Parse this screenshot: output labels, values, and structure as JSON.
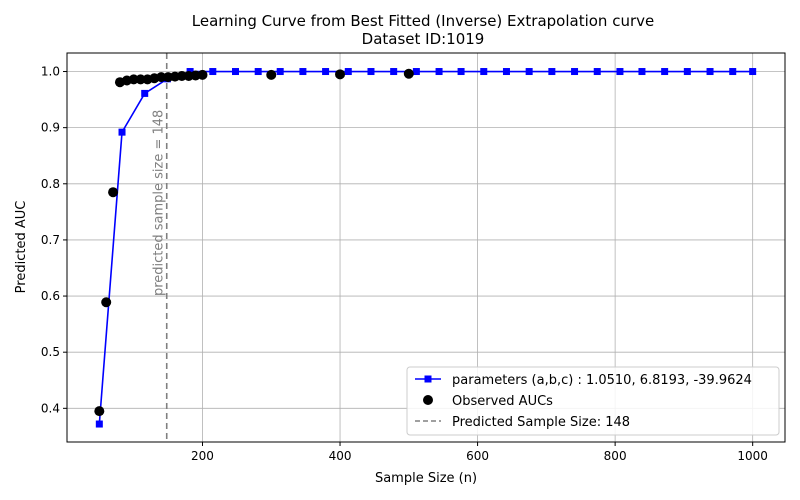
{
  "chart_data": {
    "type": "line",
    "title_line1": "Learning Curve from Best Fitted (Inverse) Extrapolation curve",
    "title_line2": "Dataset ID:1019",
    "xlabel": "Sample Size (n)",
    "ylabel": "Predicted AUC",
    "xlim": [
      3,
      1047
    ],
    "ylim": [
      0.34,
      1.033
    ],
    "xticks": [
      200,
      400,
      600,
      800,
      1000
    ],
    "yticks": [
      0.4,
      0.5,
      0.6,
      0.7,
      0.8,
      0.9,
      1.0
    ],
    "xtick_labels": [
      "200",
      "400",
      "600",
      "800",
      "1000"
    ],
    "ytick_labels": [
      "0.4",
      "0.5",
      "0.6",
      "0.7",
      "0.8",
      "0.9",
      "1.0"
    ],
    "grid": true,
    "legend_position": "lower right",
    "series": [
      {
        "name": "parameters (a,b,c) : 1.0510, 6.8193, -39.9624",
        "kind": "line-square-markers",
        "color": "#0000ff",
        "x": [
          50,
          83,
          116,
          149,
          182,
          215,
          248,
          281,
          313,
          346,
          379,
          412,
          445,
          478,
          511,
          544,
          576,
          609,
          642,
          675,
          708,
          741,
          774,
          807,
          839,
          872,
          905,
          938,
          971,
          1000
        ],
        "y": [
          0.372,
          0.892,
          0.961,
          0.987,
          1.0,
          1.0,
          1.0,
          1.0,
          1.0,
          1.0,
          1.0,
          1.0,
          1.0,
          1.0,
          1.0,
          1.0,
          1.0,
          1.0,
          1.0,
          1.0,
          1.0,
          1.0,
          1.0,
          1.0,
          1.0,
          1.0,
          1.0,
          1.0,
          1.0,
          1.0
        ]
      },
      {
        "name": "Observed AUCs",
        "kind": "scatter",
        "color": "#000000",
        "x": [
          50,
          60,
          70,
          80,
          90,
          100,
          110,
          120,
          130,
          140,
          150,
          160,
          170,
          180,
          190,
          200,
          300,
          400,
          500
        ],
        "y": [
          0.395,
          0.589,
          0.785,
          0.981,
          0.984,
          0.986,
          0.986,
          0.986,
          0.988,
          0.99,
          0.99,
          0.991,
          0.992,
          0.992,
          0.993,
          0.994,
          0.994,
          0.995,
          0.996
        ]
      },
      {
        "name": "Predicted Sample Size: 148",
        "kind": "vertical-dashed-line",
        "color": "#808080",
        "x": 148
      }
    ],
    "annotations": [
      {
        "text": "predicted sample size = 148",
        "x": 148,
        "y": 0.6,
        "rotation": 90,
        "color": "#808080"
      }
    ]
  }
}
